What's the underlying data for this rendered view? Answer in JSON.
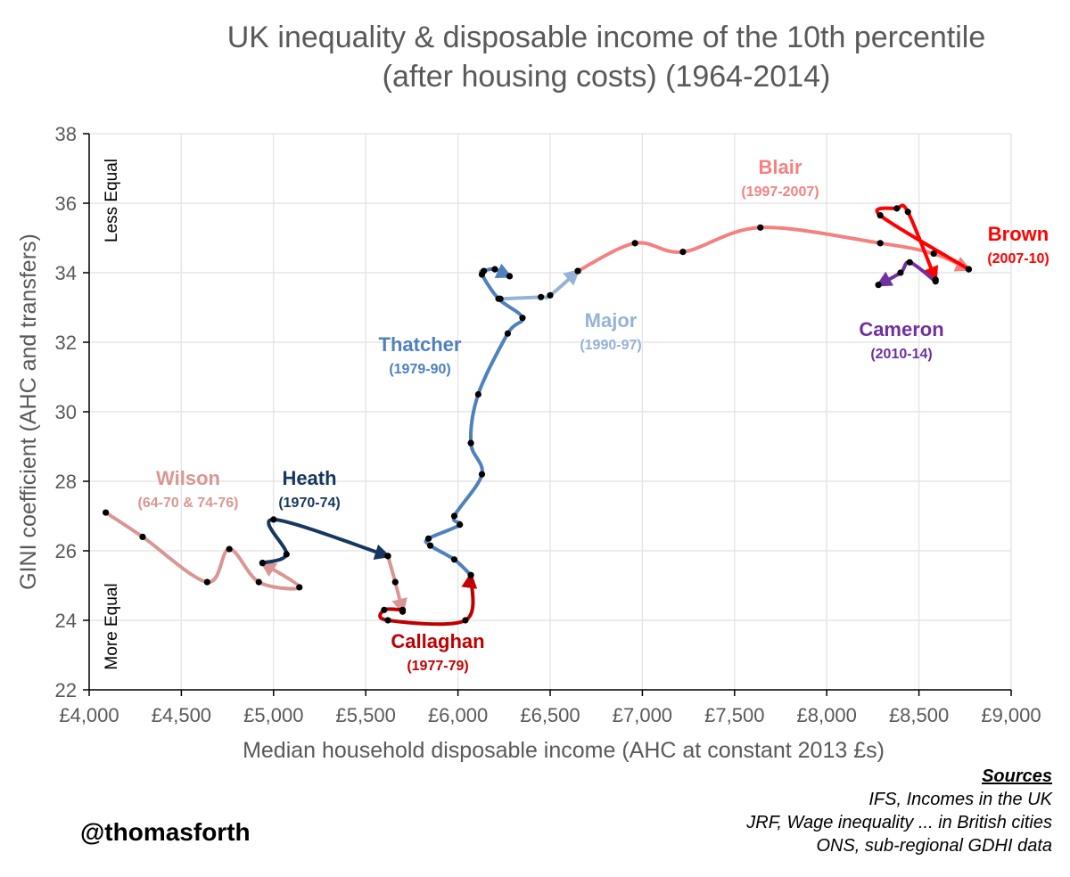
{
  "title_lines": [
    "UK inequality & disposable income of the 10th percentile",
    "(after housing costs) (1964-2014)"
  ],
  "chart_data": {
    "type": "line",
    "title": "UK inequality & disposable income of the 10th percentile (after housing costs) (1964-2014)",
    "xlabel": "Median household disposable income (AHC at constant 2013 £s)",
    "ylabel": "GINI coefficient (AHC and transfers)",
    "xlim": [
      4000,
      9000
    ],
    "ylim": [
      22,
      38
    ],
    "x_ticks": [
      4000,
      4500,
      5000,
      5500,
      6000,
      6500,
      7000,
      7500,
      8000,
      8500,
      9000
    ],
    "x_tick_labels": [
      "£4,000",
      "£4,500",
      "£5,000",
      "£5,500",
      "£6,000",
      "£6,500",
      "£7,000",
      "£7,500",
      "£8,000",
      "£8,500",
      "£9,000"
    ],
    "y_ticks": [
      22,
      24,
      26,
      28,
      30,
      32,
      34,
      36,
      38
    ],
    "y_tick_labels": [
      "22",
      "24",
      "26",
      "28",
      "30",
      "32",
      "34",
      "36",
      "38"
    ],
    "grid": true,
    "annotations": [
      "Less Equal",
      "More Equal"
    ],
    "series": [
      {
        "name": "Wilson",
        "years_label": "(64-70 & 74-76)",
        "color": "#d99694",
        "points": [
          [
            4090,
            27.1
          ],
          [
            4290,
            26.4
          ],
          [
            4640,
            25.1
          ],
          [
            4760,
            26.05
          ],
          [
            4920,
            25.1
          ],
          [
            5140,
            24.95
          ],
          [
            4940,
            25.65
          ]
        ]
      },
      {
        "name": "Heath",
        "years_label": "(1970-74)",
        "color": "#17375e",
        "points": [
          [
            4940,
            25.65
          ],
          [
            5070,
            25.9
          ],
          [
            5000,
            26.9
          ],
          [
            5620,
            25.85
          ]
        ]
      },
      {
        "name": "Wilson",
        "years_label": "(64-70 & 74-76)",
        "color": "#d99694",
        "points": [
          [
            5620,
            25.85
          ],
          [
            5660,
            25.1
          ],
          [
            5700,
            24.25
          ]
        ]
      },
      {
        "name": "Callaghan",
        "years_label": "(1977-79)",
        "color": "#c00000",
        "points": [
          [
            5700,
            24.3
          ],
          [
            5600,
            24.3
          ],
          [
            5620,
            24.0
          ],
          [
            6040,
            24.0
          ],
          [
            6070,
            25.3
          ]
        ]
      },
      {
        "name": "Thatcher",
        "years_label": "(1979-90)",
        "color": "#4f81bd",
        "points": [
          [
            6070,
            25.3
          ],
          [
            5980,
            25.75
          ],
          [
            5850,
            26.15
          ],
          [
            5840,
            26.35
          ],
          [
            6010,
            26.75
          ],
          [
            5980,
            27.0
          ],
          [
            6130,
            28.2
          ],
          [
            6070,
            29.1
          ],
          [
            6110,
            30.5
          ],
          [
            6270,
            32.25
          ],
          [
            6350,
            32.7
          ],
          [
            6220,
            33.25
          ],
          [
            6130,
            33.95
          ],
          [
            6140,
            34.05
          ],
          [
            6200,
            34.1
          ],
          [
            6280,
            33.9
          ]
        ]
      },
      {
        "name": "Major",
        "years_label": "(1990-97)",
        "color": "#95b3d7",
        "points": [
          [
            6230,
            33.25
          ],
          [
            6450,
            33.3
          ],
          [
            6500,
            33.35
          ],
          [
            6650,
            34.05
          ]
        ]
      },
      {
        "name": "Blair",
        "years_label": "(1997-2007)",
        "color": "#f48080",
        "points": [
          [
            6650,
            34.05
          ],
          [
            6960,
            34.85
          ],
          [
            7220,
            34.6
          ],
          [
            7640,
            35.3
          ],
          [
            8290,
            34.85
          ],
          [
            8580,
            34.55
          ],
          [
            8770,
            34.1
          ]
        ]
      },
      {
        "name": "Brown",
        "years_label": "(2007-10)",
        "color": "#ff0000",
        "points": [
          [
            8770,
            34.1
          ],
          [
            8290,
            35.65
          ],
          [
            8380,
            35.85
          ],
          [
            8440,
            35.75
          ],
          [
            8590,
            33.8
          ]
        ]
      },
      {
        "name": "Cameron",
        "years_label": "(2010-14)",
        "color": "#7030a0",
        "points": [
          [
            8590,
            33.75
          ],
          [
            8450,
            34.3
          ],
          [
            8400,
            34.0
          ],
          [
            8280,
            33.65
          ]
        ]
      }
    ],
    "labels": [
      {
        "name": "Wilson",
        "years": "(64-70 & 74-76)",
        "color": "#d99694"
      },
      {
        "name": "Heath",
        "years": "(1970-74)",
        "color": "#17375e"
      },
      {
        "name": "Callaghan",
        "years": "(1977-79)",
        "color": "#c00000"
      },
      {
        "name": "Thatcher",
        "years": "(1979-90)",
        "color": "#4f81bd"
      },
      {
        "name": "Major",
        "years": "(1990-97)",
        "color": "#95b3d7"
      },
      {
        "name": "Blair",
        "years": "(1997-2007)",
        "color": "#f48080"
      },
      {
        "name": "Brown",
        "years": "(2007-10)",
        "color": "#ff0000"
      },
      {
        "name": "Cameron",
        "years": "(2010-14)",
        "color": "#7030a0"
      }
    ]
  },
  "handle": "@thomasforth",
  "sources": {
    "heading": "Sources",
    "lines": [
      "IFS, Incomes in the UK",
      "JRF, Wage inequality ... in British cities",
      "ONS, sub-regional GDHI data"
    ]
  }
}
